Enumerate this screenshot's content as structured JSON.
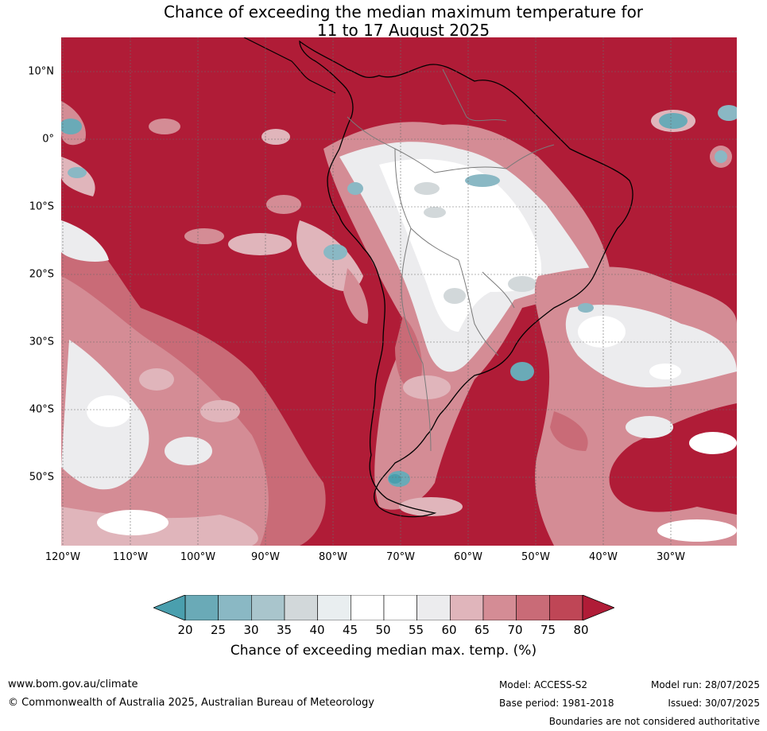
{
  "title_line1": "Chance of exceeding the median maximum temperature for",
  "title_line2": "11 to 17 August 2025",
  "lat_labels": [
    "10°N",
    "0°",
    "10°S",
    "20°S",
    "30°S",
    "40°S",
    "50°S"
  ],
  "lon_labels": [
    "120°W",
    "110°W",
    "100°W",
    "90°W",
    "80°W",
    "70°W",
    "60°W",
    "50°W",
    "40°W",
    "30°W"
  ],
  "colorbar": {
    "ticks": [
      "20",
      "25",
      "30",
      "35",
      "40",
      "45",
      "50",
      "55",
      "60",
      "65",
      "70",
      "75",
      "80"
    ],
    "colors": [
      "#4a9fae",
      "#6aaab7",
      "#8ab8c4",
      "#a9c5cc",
      "#d2d8da",
      "#e9eef0",
      "#ffffff",
      "#ffffff",
      "#ececee",
      "#e0b5bb",
      "#d48c95",
      "#c96b77",
      "#bf4656",
      "#b01c37"
    ],
    "label": "Chance of exceeding median max. temp. (%)"
  },
  "footer": {
    "website": "www.bom.gov.au/climate",
    "copyright": "© Commonwealth of Australia 2025, Australian Bureau of Meteorology",
    "model": "Model: ACCESS-S2",
    "base_period": "Base period: 1981-2018",
    "model_run": "Model run: 28/07/2025",
    "issued": "Issued: 30/07/2025",
    "disclaimer": "Boundaries are not considered authoritative"
  },
  "colors": {
    "background_red": "#b01c37",
    "land_outline": "#000000",
    "borders": "#7a7a7a"
  }
}
